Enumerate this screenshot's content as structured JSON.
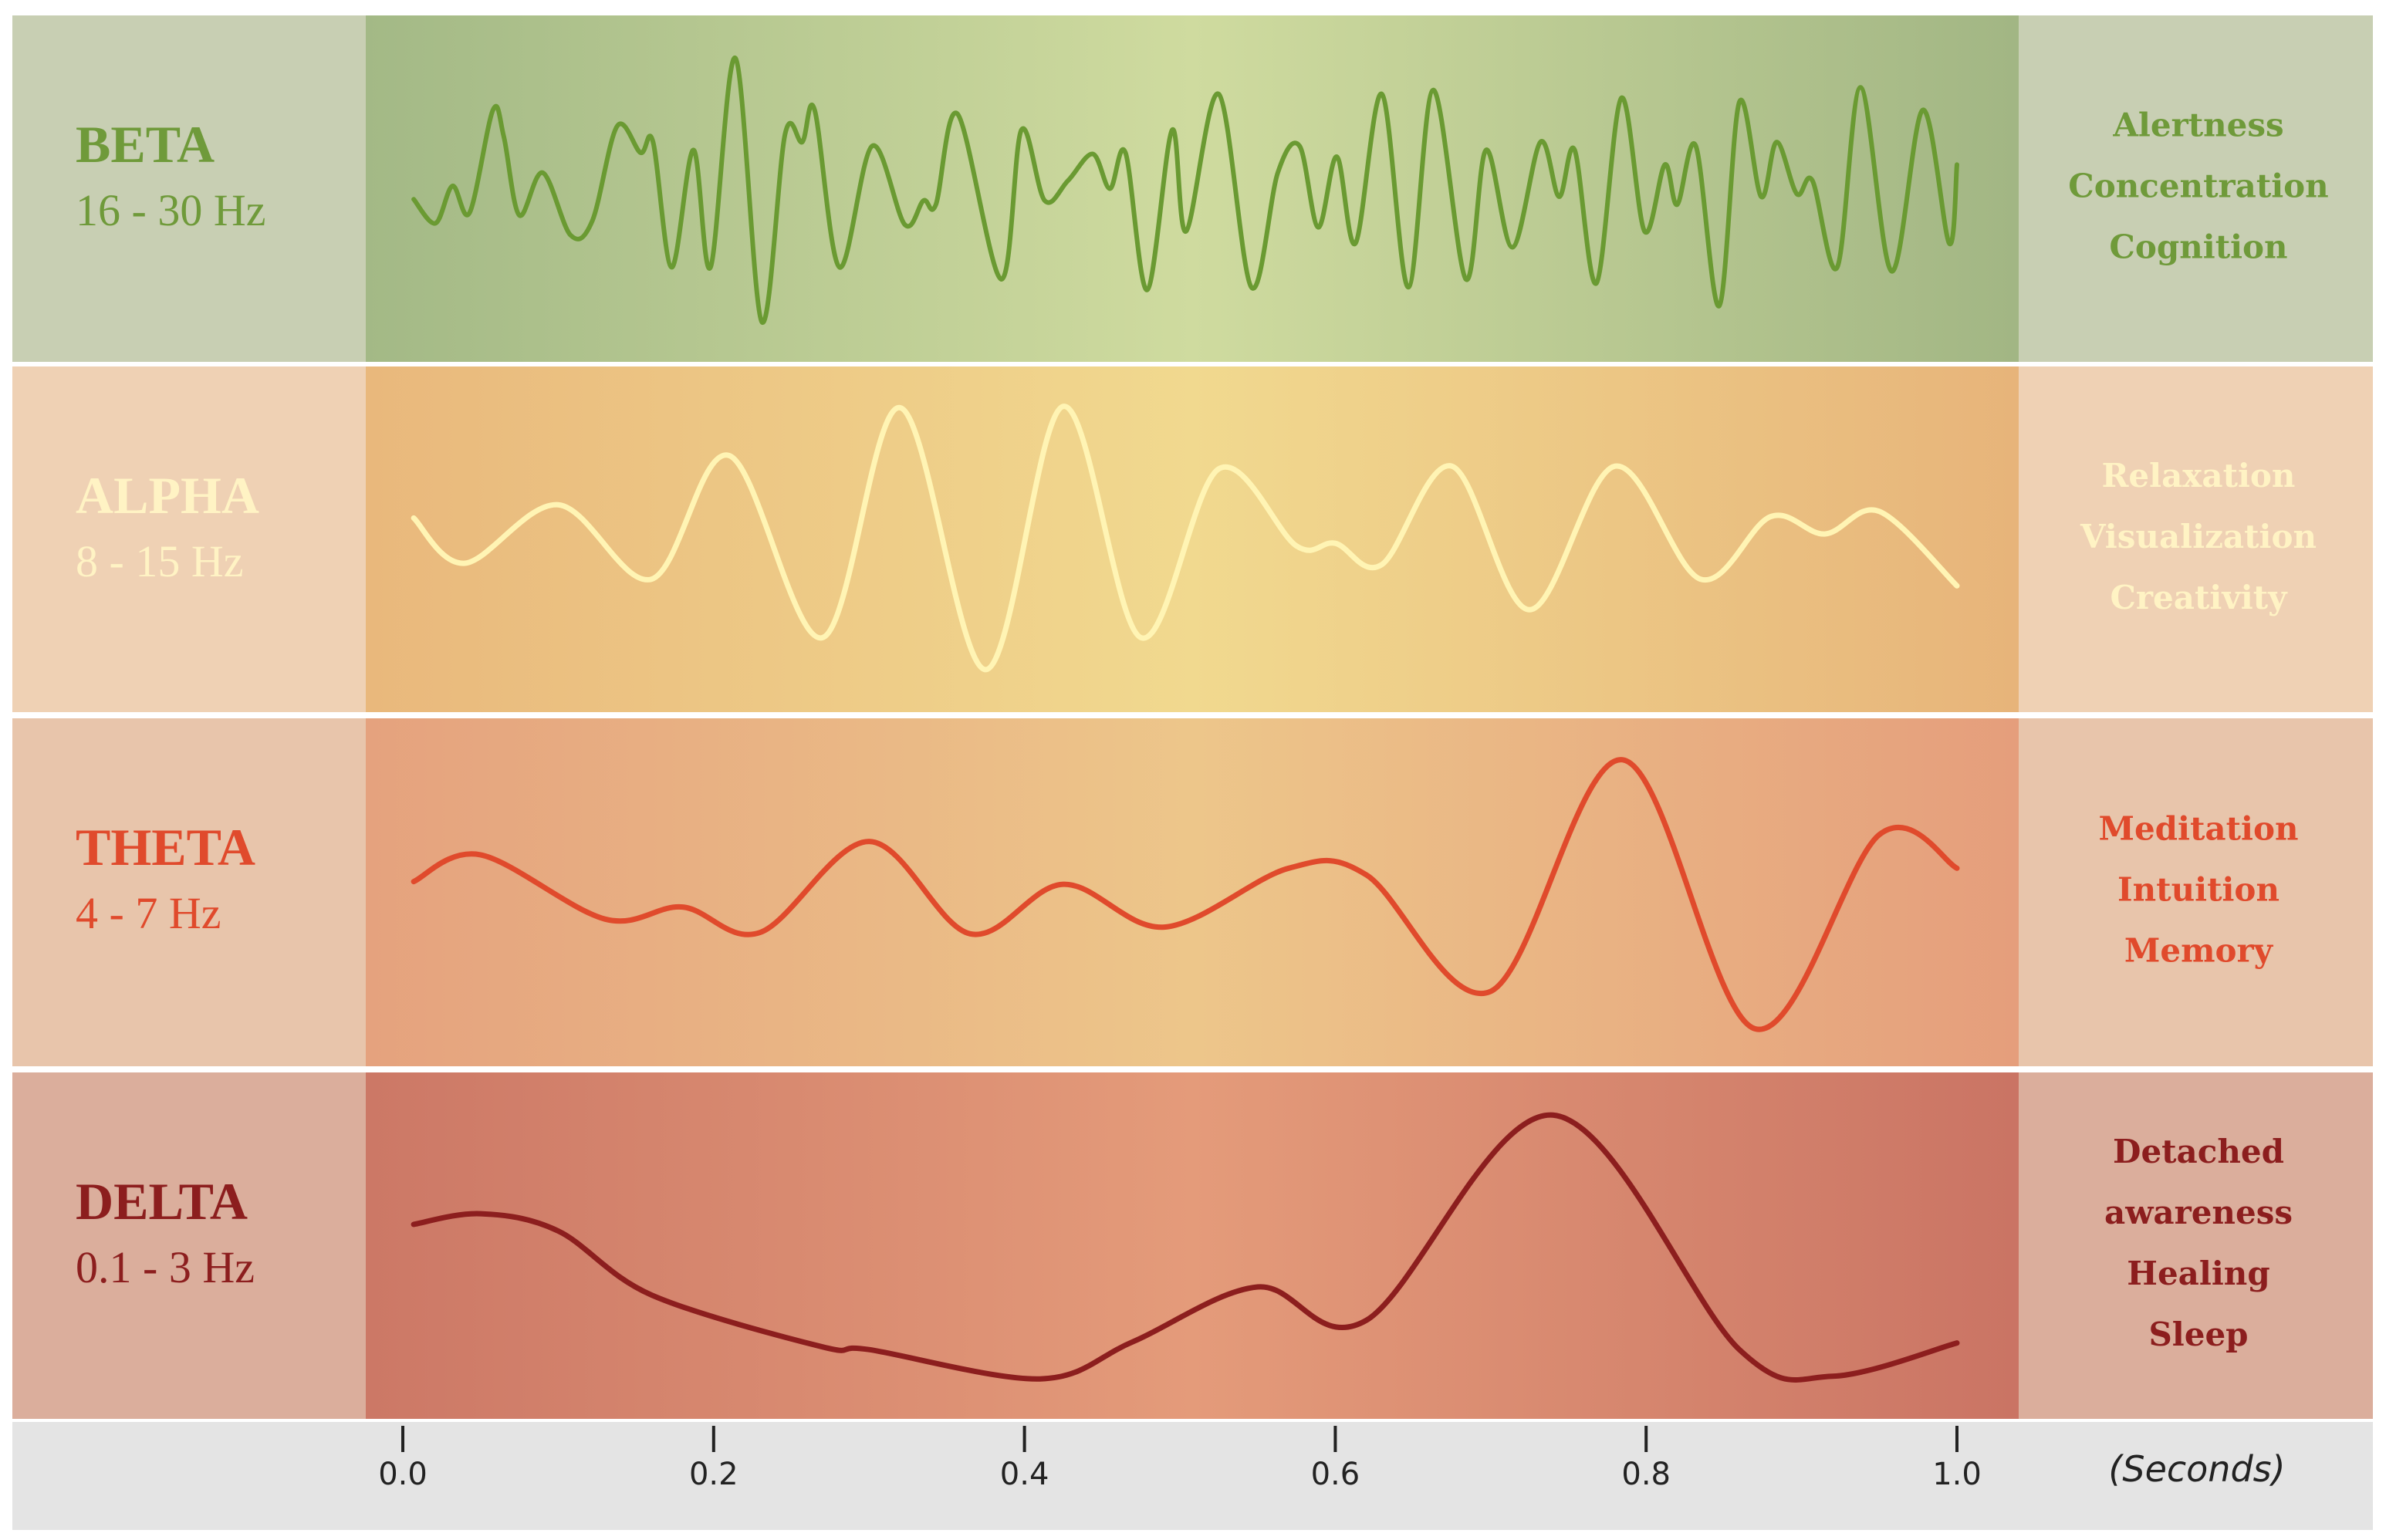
{
  "chart_data": {
    "type": "line",
    "xlim": [
      0,
      1
    ],
    "xticks": [
      {
        "value": 0,
        "label": "0.0"
      },
      {
        "value": 0.2,
        "label": "0.2"
      },
      {
        "value": 0.4,
        "label": "0.4"
      },
      {
        "value": 0.6,
        "label": "0.6"
      },
      {
        "value": 0.8,
        "label": "0.8"
      },
      {
        "value": 1,
        "label": "1.0"
      }
    ],
    "xlabel": "(Seconds)",
    "ylim": [
      -1.3,
      1.3
    ],
    "series": [
      {
        "name": "BETA",
        "range": "16 - 30 Hz",
        "effects": [
          "Alertness",
          "Concentration",
          "Cognition"
        ],
        "color": "#6a9a32",
        "label_color": "#6f9a3a",
        "x": [
          0.007,
          0.021,
          0.032,
          0.043,
          0.058,
          0.065,
          0.075,
          0.09,
          0.108,
          0.122,
          0.138,
          0.153,
          0.161,
          0.173,
          0.187,
          0.198,
          0.214,
          0.231,
          0.246,
          0.257,
          0.265,
          0.281,
          0.302,
          0.323,
          0.335,
          0.343,
          0.357,
          0.385,
          0.398,
          0.413,
          0.428,
          0.444,
          0.455,
          0.465,
          0.479,
          0.495,
          0.504,
          0.525,
          0.546,
          0.563,
          0.577,
          0.589,
          0.601,
          0.613,
          0.63,
          0.647,
          0.663,
          0.684,
          0.697,
          0.714,
          0.732,
          0.744,
          0.754,
          0.768,
          0.784,
          0.799,
          0.812,
          0.82,
          0.832,
          0.847,
          0.86,
          0.874,
          0.884,
          0.897,
          0.907,
          0.923,
          0.938,
          0.958,
          0.978,
          0.995,
          1.0
        ],
        "values": [
          -0.08,
          -0.26,
          0.02,
          -0.18,
          0.59,
          0.39,
          -0.2,
          0.12,
          -0.35,
          -0.24,
          0.47,
          0.27,
          0.35,
          -0.59,
          0.29,
          -0.59,
          0.98,
          -1.0,
          0.41,
          0.35,
          0.59,
          -0.59,
          0.32,
          -0.27,
          -0.09,
          -0.12,
          0.56,
          -0.68,
          0.44,
          -0.09,
          0.06,
          0.26,
          0,
          0.27,
          -0.76,
          0.44,
          -0.32,
          0.71,
          -0.74,
          0.12,
          0.32,
          -0.29,
          0.24,
          -0.41,
          0.71,
          -0.74,
          0.74,
          -0.68,
          0.29,
          -0.44,
          0.35,
          -0.06,
          0.29,
          -0.71,
          0.68,
          -0.32,
          0.18,
          -0.12,
          0.32,
          -0.88,
          0.65,
          -0.06,
          0.35,
          -0.04,
          0.06,
          -0.59,
          0.76,
          -0.62,
          0.59,
          -0.41,
          0.18
        ]
      },
      {
        "name": "ALPHA",
        "range": "8 - 15 Hz",
        "effects": [
          "Relaxation",
          "Visualization",
          "Creativity"
        ],
        "color": "#fff4b4",
        "label_color": "#fff3c4",
        "x": [
          0.007,
          0.04,
          0.1,
          0.16,
          0.21,
          0.27,
          0.32,
          0.375,
          0.425,
          0.475,
          0.525,
          0.575,
          0.6,
          0.63,
          0.675,
          0.725,
          0.78,
          0.835,
          0.88,
          0.915,
          0.95,
          1.0
        ],
        "values": [
          0.16,
          -0.18,
          0.26,
          -0.3,
          0.63,
          -0.74,
          0.99,
          -0.98,
          1.0,
          -0.74,
          0.53,
          -0.05,
          -0.03,
          -0.19,
          0.55,
          -0.53,
          0.55,
          -0.3,
          0.17,
          0.04,
          0.21,
          -0.35
        ]
      },
      {
        "name": "THETA",
        "range": "4 - 7 Hz",
        "effects": [
          "Meditation",
          "Intuition",
          "Memory"
        ],
        "color": "#e04a2c",
        "label_color": "#e04a2c",
        "x": [
          0.007,
          0.05,
          0.13,
          0.18,
          0.23,
          0.3,
          0.365,
          0.425,
          0.49,
          0.57,
          0.62,
          0.7,
          0.785,
          0.87,
          0.95,
          1.0
        ],
        "values": [
          0.08,
          0.28,
          -0.2,
          -0.11,
          -0.3,
          0.38,
          -0.31,
          0.06,
          -0.26,
          0.18,
          0.13,
          -0.74,
          0.99,
          -1.02,
          0.43,
          0.18
        ]
      },
      {
        "name": "DELTA",
        "range": "0.1 - 3 Hz",
        "effects": [
          "Detached",
          "awareness",
          "Healing",
          "Sleep"
        ],
        "color": "#8c1e1e",
        "label_color": "#8c1e1e",
        "x": [
          0.007,
          0.05,
          0.1,
          0.16,
          0.27,
          0.3,
          0.41,
          0.47,
          0.55,
          0.62,
          0.74,
          0.86,
          0.92,
          1.0
        ],
        "values": [
          0.16,
          0.24,
          0.11,
          -0.37,
          -0.76,
          -0.78,
          -1.0,
          -0.72,
          -0.31,
          -0.56,
          0.98,
          -0.78,
          -0.98,
          -0.73
        ]
      }
    ]
  }
}
